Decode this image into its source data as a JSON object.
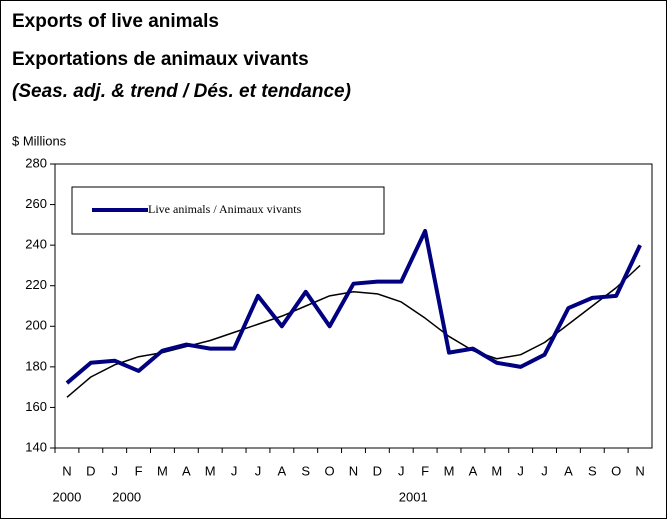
{
  "chart_data": {
    "type": "line",
    "title": "Exports of live animals",
    "subtitle": "Exportations de animaux vivants",
    "note": "(Seas. adj. & trend / Dés. et tendance)",
    "y_label": "$ Millions",
    "categories": [
      "N",
      "D",
      "J",
      "F",
      "M",
      "A",
      "M",
      "J",
      "J",
      "A",
      "S",
      "O",
      "N",
      "D",
      "J",
      "F",
      "M",
      "A",
      "M",
      "J",
      "J",
      "A",
      "S",
      "O",
      "N"
    ],
    "x_groups": [
      {
        "label": "2000",
        "start": 0
      },
      {
        "label": "2000",
        "start": 2
      },
      {
        "label": "2001",
        "start": 14
      }
    ],
    "series": [
      {
        "name": "Live animals / Animaux vivants",
        "color": "#000080",
        "values": [
          172,
          182,
          183,
          178,
          188,
          191,
          189,
          189,
          215,
          200,
          217,
          200,
          221,
          222,
          222,
          247,
          187,
          189,
          182,
          180,
          186,
          209,
          214,
          215,
          240
        ]
      },
      {
        "color": "#000000",
        "values": [
          165,
          175,
          181,
          185,
          187,
          190,
          193,
          197,
          201,
          205,
          210,
          215,
          217,
          216,
          212,
          204,
          195,
          188,
          184,
          186,
          192,
          201,
          210,
          219,
          230
        ]
      }
    ],
    "ylim": [
      140,
      280
    ],
    "yticks": [
      140,
      160,
      180,
      200,
      220,
      240,
      260,
      280
    ],
    "legend": "upper left",
    "grid": false
  }
}
